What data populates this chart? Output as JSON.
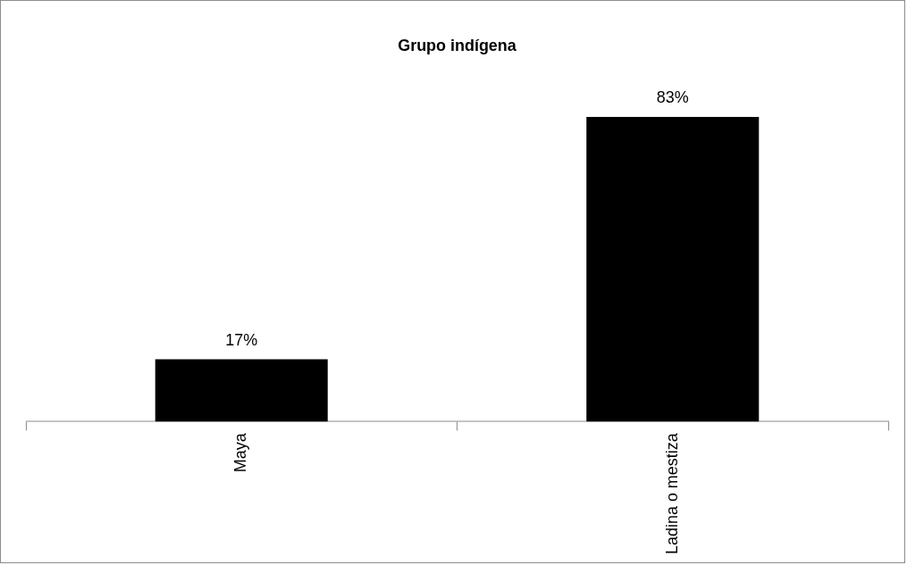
{
  "chart_data": {
    "type": "bar",
    "title": "Grupo indígena",
    "categories": [
      "Maya",
      "Ladina o mestiza"
    ],
    "values": [
      17,
      83
    ],
    "color": "#000000",
    "value_labels": [
      "17%",
      "83%"
    ],
    "grid": false,
    "legend": false
  }
}
